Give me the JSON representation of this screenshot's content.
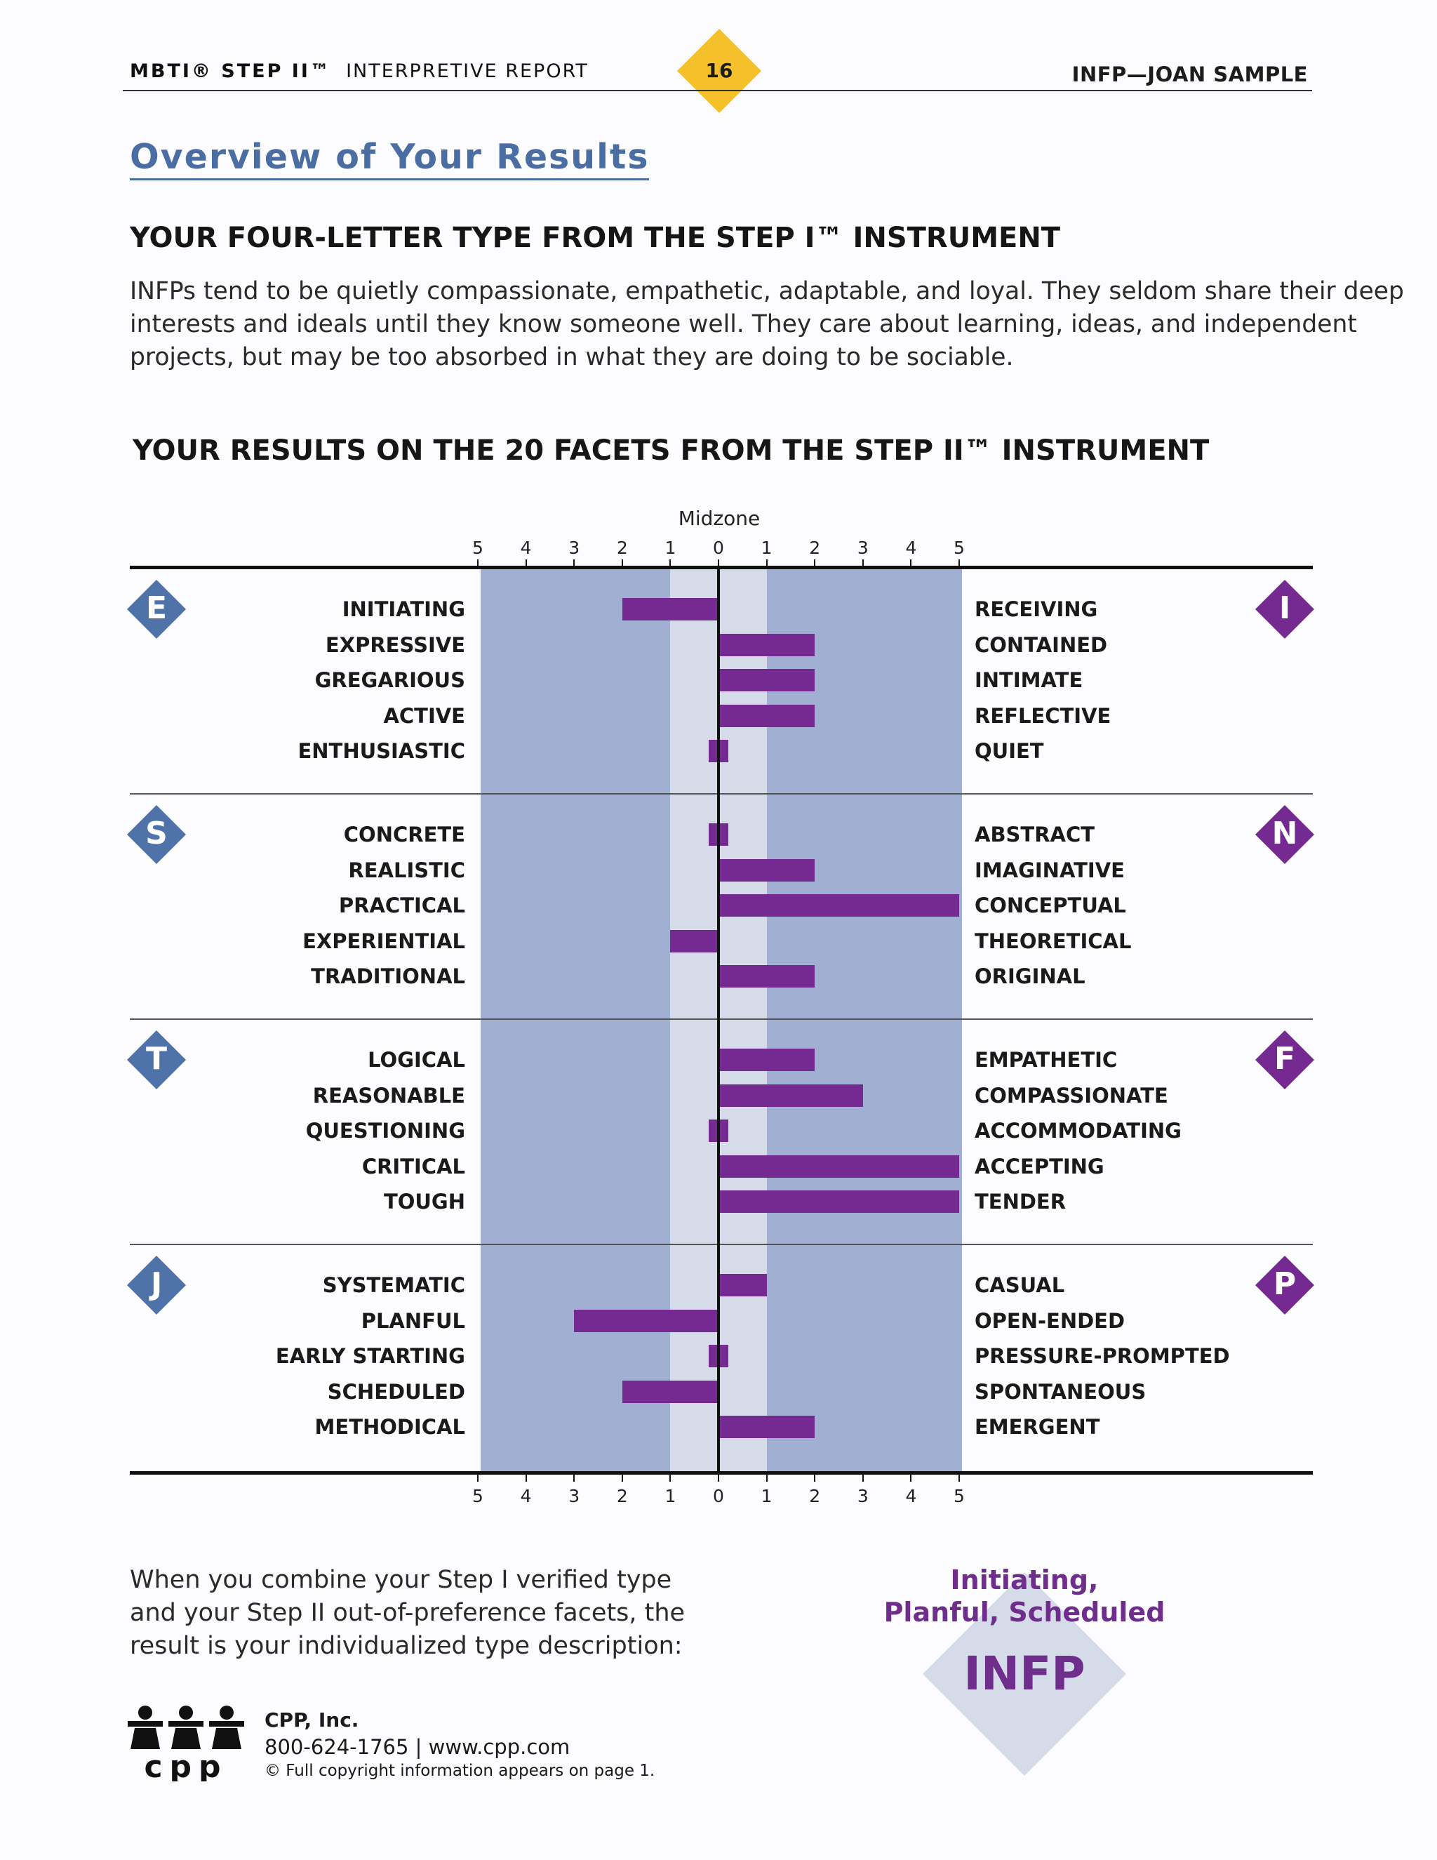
{
  "header": {
    "brand_bold": "MBTI® STEP II™",
    "brand_rest": "INTERPRETIVE REPORT",
    "page_number": "16",
    "client": "INFP—JOAN SAMPLE"
  },
  "section_title": "Overview of Your Results",
  "step1": {
    "heading": "YOUR FOUR-LETTER TYPE FROM THE STEP I™ INSTRUMENT",
    "lines": [
      "INFPs tend to be quietly compassionate, empathetic, adaptable, and loyal. They seldom share their deep",
      "interests and ideals until they know someone well. They care about learning, ideas, and independent",
      "projects, but may be too absorbed in what they are doing to be sociable."
    ]
  },
  "step2": {
    "heading": "YOUR RESULTS ON THE 20 FACETS FROM THE STEP II™ INSTRUMENT"
  },
  "chart_data": {
    "type": "bar",
    "orientation": "horizontal-diverging",
    "midzone_label": "Midzone",
    "tick_labels": [
      "5",
      "4",
      "3",
      "2",
      "1",
      "0",
      "1",
      "2",
      "3",
      "4",
      "5"
    ],
    "xlim": [
      -5,
      5
    ],
    "midzone_range": [
      -1,
      1
    ],
    "groups": [
      {
        "left_pole": "E",
        "right_pole": "I",
        "facets": [
          {
            "left": "INITIATING",
            "right": "RECEIVING",
            "value": -2
          },
          {
            "left": "EXPRESSIVE",
            "right": "CONTAINED",
            "value": 2
          },
          {
            "left": "GREGARIOUS",
            "right": "INTIMATE",
            "value": 2
          },
          {
            "left": "ACTIVE",
            "right": "REFLECTIVE",
            "value": 2
          },
          {
            "left": "ENTHUSIASTIC",
            "right": "QUIET",
            "value": 0
          }
        ]
      },
      {
        "left_pole": "S",
        "right_pole": "N",
        "facets": [
          {
            "left": "CONCRETE",
            "right": "ABSTRACT",
            "value": 0
          },
          {
            "left": "REALISTIC",
            "right": "IMAGINATIVE",
            "value": 2
          },
          {
            "left": "PRACTICAL",
            "right": "CONCEPTUAL",
            "value": 5
          },
          {
            "left": "EXPERIENTIAL",
            "right": "THEORETICAL",
            "value": -1
          },
          {
            "left": "TRADITIONAL",
            "right": "ORIGINAL",
            "value": 2
          }
        ]
      },
      {
        "left_pole": "T",
        "right_pole": "F",
        "facets": [
          {
            "left": "LOGICAL",
            "right": "EMPATHETIC",
            "value": 2
          },
          {
            "left": "REASONABLE",
            "right": "COMPASSIONATE",
            "value": 3
          },
          {
            "left": "QUESTIONING",
            "right": "ACCOMMODATING",
            "value": 0
          },
          {
            "left": "CRITICAL",
            "right": "ACCEPTING",
            "value": 5
          },
          {
            "left": "TOUGH",
            "right": "TENDER",
            "value": 5
          }
        ]
      },
      {
        "left_pole": "J",
        "right_pole": "P",
        "facets": [
          {
            "left": "SYSTEMATIC",
            "right": "CASUAL",
            "value": 1
          },
          {
            "left": "PLANFUL",
            "right": "OPEN-ENDED",
            "value": -3
          },
          {
            "left": "EARLY STARTING",
            "right": "PRESSURE-PROMPTED",
            "value": 0
          },
          {
            "left": "SCHEDULED",
            "right": "SPONTANEOUS",
            "value": -2
          },
          {
            "left": "METHODICAL",
            "right": "EMERGENT",
            "value": 2
          }
        ]
      }
    ],
    "colors": {
      "bar": "#742a91",
      "outer_band": "#a0afd2",
      "midzone_band": "#d6dbe9",
      "left_pole": "#4f72a8",
      "right_pole": "#742a91"
    }
  },
  "combine": {
    "lines": [
      "When you combine your Step I verified type",
      "and your Step II out-of-preference facets, the",
      "result is your individualized type description:"
    ]
  },
  "result": {
    "facet_lines": [
      "Initiating,",
      "Planful, Scheduled"
    ],
    "type": "INFP"
  },
  "footer": {
    "logo_text": "cpp",
    "company": "CPP, Inc.",
    "phone_web": "800-624-1765 | www.cpp.com",
    "copyright": "© Full copyright information appears on page 1."
  }
}
